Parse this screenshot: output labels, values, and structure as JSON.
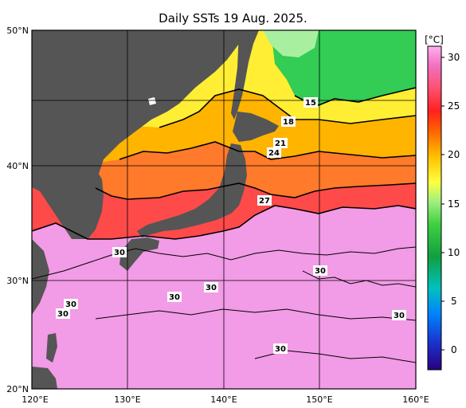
{
  "title": "Daily SSTs 19 Aug. 2025.",
  "lat_labels": [
    "50°N",
    "40°N",
    "30°N",
    "20°N"
  ],
  "lon_labels": [
    "120°E",
    "130°E",
    "140°E",
    "150°E",
    "160°E"
  ],
  "colorbar": {
    "unit": "[°C]",
    "ticks": [
      "30",
      "25",
      "20",
      "15",
      "10",
      "5",
      "0"
    ]
  },
  "contour_labels": [
    "15",
    "18",
    "21",
    "24",
    "27",
    "30",
    "30",
    "30",
    "30",
    "30",
    "30",
    "30",
    "30"
  ],
  "colors": {
    "land": "#555555",
    "warm_sea": "#f29be6",
    "sea_27": "#ff4a4a",
    "sea_24": "#ff7a2a",
    "sea_21": "#ffb400",
    "sea_18": "#ffee33",
    "cold_sea": "#33cc55"
  }
}
